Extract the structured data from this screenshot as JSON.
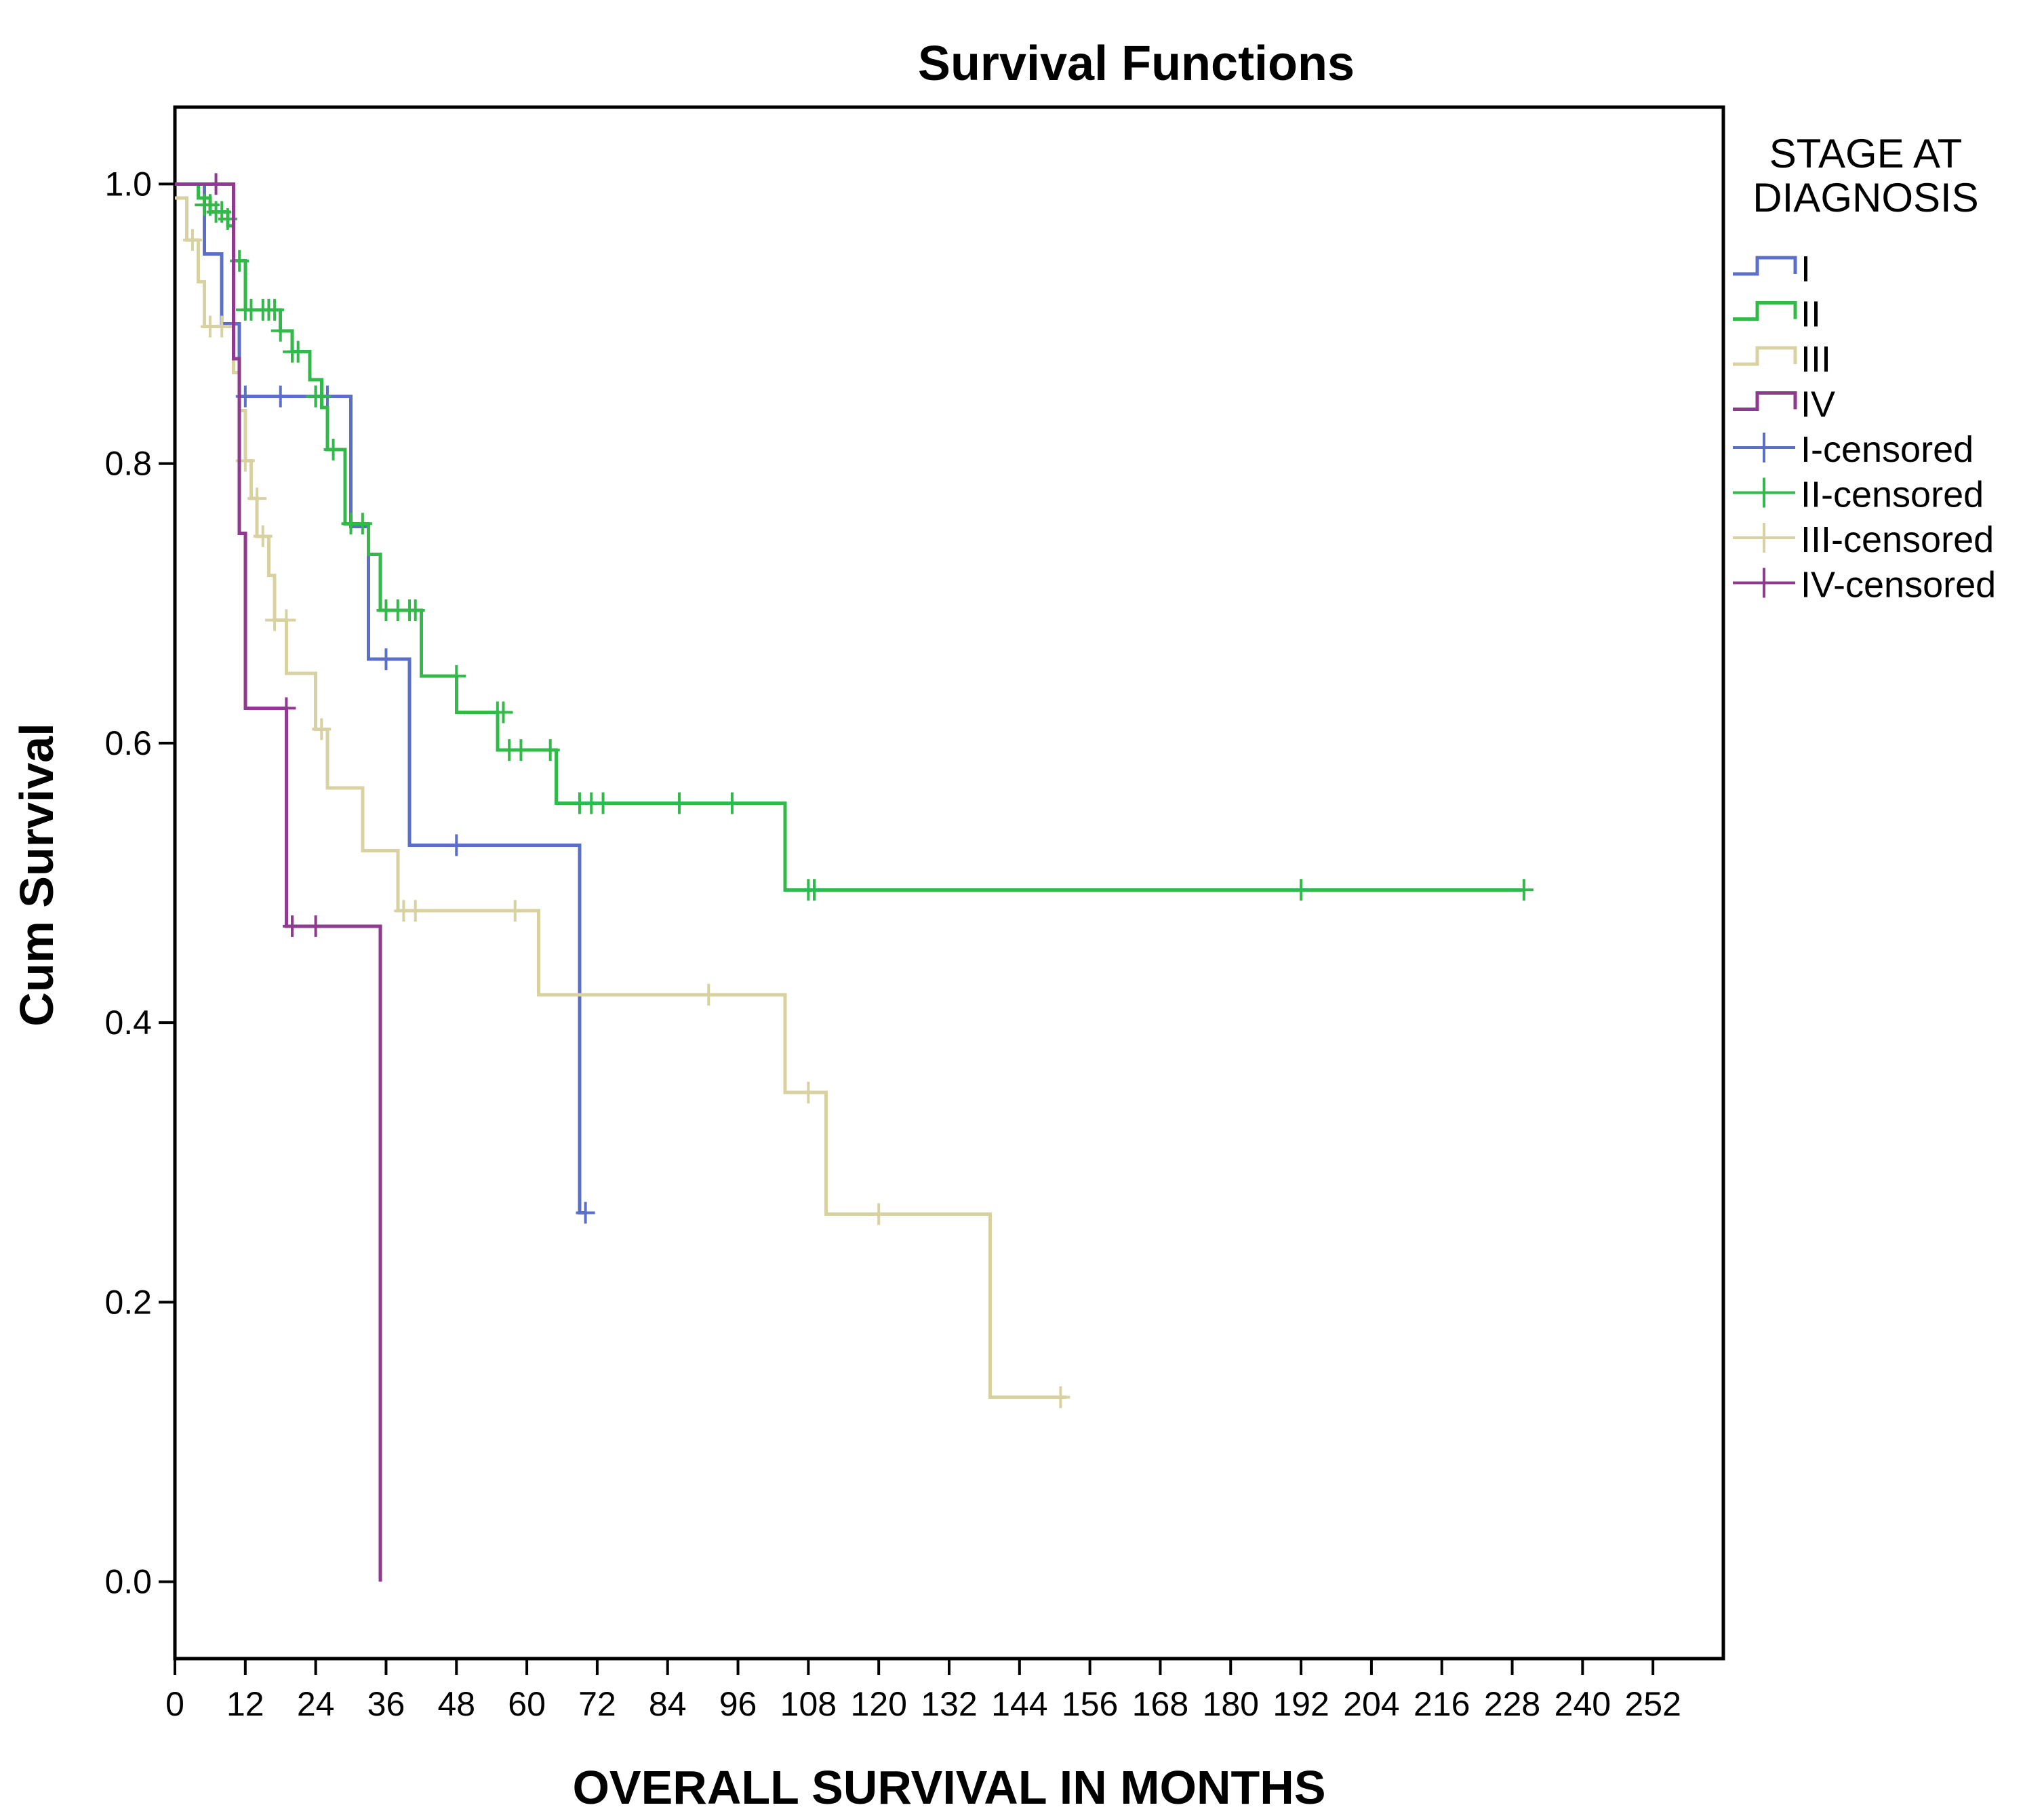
{
  "chart_data": {
    "type": "line",
    "title": "Survival Functions",
    "xlabel": "OVERALL SURVIVAL IN MONTHS",
    "ylabel": "Cum Survival",
    "xlim": [
      0,
      264
    ],
    "ylim": [
      -0.055,
      1.055
    ],
    "x_ticks": [
      0,
      12,
      24,
      36,
      48,
      60,
      72,
      84,
      96,
      108,
      120,
      132,
      144,
      156,
      168,
      180,
      192,
      204,
      216,
      228,
      240,
      252
    ],
    "y_ticks": [
      0.0,
      0.2,
      0.4,
      0.6,
      0.8,
      1.0
    ],
    "y_tick_labels": [
      "0.0",
      "0.2",
      "0.4",
      "0.6",
      "0.8",
      "1.0"
    ],
    "grid": false,
    "legend": {
      "title": "STAGE AT DIAGNOSIS",
      "title_lines": [
        "STAGE AT",
        "DIAGNOSIS"
      ],
      "placement": "right",
      "entries": [
        {
          "label": "I",
          "series": "I",
          "kind": "step"
        },
        {
          "label": "II",
          "series": "II",
          "kind": "step"
        },
        {
          "label": "III",
          "series": "III",
          "kind": "step"
        },
        {
          "label": "IV",
          "series": "IV",
          "kind": "step"
        },
        {
          "label": "I-censored",
          "series": "I",
          "kind": "censor"
        },
        {
          "label": "II-censored",
          "series": "II",
          "kind": "censor"
        },
        {
          "label": "III-censored",
          "series": "III",
          "kind": "censor"
        },
        {
          "label": "IV-censored",
          "series": "IV",
          "kind": "censor"
        }
      ]
    },
    "series": [
      {
        "name": "I",
        "color": "#5b6fc7",
        "steps": [
          [
            0,
            1.0
          ],
          [
            5,
            0.95
          ],
          [
            8,
            0.9
          ],
          [
            11,
            0.848
          ],
          [
            30,
            0.755
          ],
          [
            33,
            0.66
          ],
          [
            40,
            0.527
          ],
          [
            69,
            0.264
          ]
        ],
        "end": 70,
        "censored": [
          [
            12,
            0.848
          ],
          [
            18,
            0.848
          ],
          [
            24,
            0.848
          ],
          [
            26,
            0.848
          ],
          [
            36,
            0.66
          ],
          [
            48,
            0.527
          ],
          [
            70,
            0.264
          ]
        ]
      },
      {
        "name": "II",
        "color": "#33b84a",
        "steps": [
          [
            0,
            1.0
          ],
          [
            4,
            0.99
          ],
          [
            6,
            0.98
          ],
          [
            9,
            0.97
          ],
          [
            10,
            0.945
          ],
          [
            12,
            0.91
          ],
          [
            18,
            0.895
          ],
          [
            20,
            0.88
          ],
          [
            23,
            0.86
          ],
          [
            25,
            0.84
          ],
          [
            26,
            0.81
          ],
          [
            29,
            0.757
          ],
          [
            33,
            0.735
          ],
          [
            35,
            0.695
          ],
          [
            42,
            0.648
          ],
          [
            48,
            0.622
          ],
          [
            55,
            0.595
          ],
          [
            65,
            0.557
          ],
          [
            104,
            0.495
          ]
        ],
        "end": 230,
        "censored": [
          [
            5,
            0.985
          ],
          [
            6,
            0.985
          ],
          [
            7,
            0.98
          ],
          [
            8,
            0.98
          ],
          [
            9,
            0.975
          ],
          [
            11,
            0.945
          ],
          [
            12,
            0.91
          ],
          [
            13,
            0.91
          ],
          [
            15,
            0.91
          ],
          [
            16,
            0.91
          ],
          [
            17,
            0.91
          ],
          [
            18,
            0.895
          ],
          [
            20,
            0.88
          ],
          [
            21,
            0.88
          ],
          [
            24,
            0.848
          ],
          [
            25,
            0.848
          ],
          [
            27,
            0.81
          ],
          [
            30,
            0.757
          ],
          [
            32,
            0.757
          ],
          [
            36,
            0.695
          ],
          [
            38,
            0.695
          ],
          [
            40,
            0.695
          ],
          [
            41,
            0.695
          ],
          [
            48,
            0.648
          ],
          [
            55,
            0.622
          ],
          [
            56,
            0.622
          ],
          [
            57,
            0.595
          ],
          [
            59,
            0.595
          ],
          [
            64,
            0.595
          ],
          [
            69,
            0.557
          ],
          [
            71,
            0.557
          ],
          [
            73,
            0.557
          ],
          [
            86,
            0.557
          ],
          [
            95,
            0.557
          ],
          [
            108,
            0.495
          ],
          [
            109,
            0.495
          ],
          [
            192,
            0.495
          ],
          [
            230,
            0.495
          ]
        ]
      },
      {
        "name": "III",
        "color": "#d8d2a2",
        "steps": [
          [
            0,
            0.99
          ],
          [
            2,
            0.96
          ],
          [
            4,
            0.93
          ],
          [
            5,
            0.898
          ],
          [
            10,
            0.865
          ],
          [
            11,
            0.838
          ],
          [
            12,
            0.802
          ],
          [
            13,
            0.775
          ],
          [
            14,
            0.748
          ],
          [
            16,
            0.72
          ],
          [
            17,
            0.688
          ],
          [
            19,
            0.65
          ],
          [
            24,
            0.61
          ],
          [
            26,
            0.568
          ],
          [
            32,
            0.523
          ],
          [
            38,
            0.48
          ],
          [
            62,
            0.42
          ],
          [
            104,
            0.35
          ],
          [
            111,
            0.263
          ],
          [
            139,
            0.132
          ]
        ],
        "end": 152,
        "censored": [
          [
            3,
            0.96
          ],
          [
            6,
            0.898
          ],
          [
            8,
            0.898
          ],
          [
            12,
            0.802
          ],
          [
            14,
            0.775
          ],
          [
            15,
            0.748
          ],
          [
            17,
            0.688
          ],
          [
            19,
            0.688
          ],
          [
            25,
            0.61
          ],
          [
            39,
            0.48
          ],
          [
            41,
            0.48
          ],
          [
            58,
            0.48
          ],
          [
            91,
            0.42
          ],
          [
            108,
            0.35
          ],
          [
            120,
            0.263
          ],
          [
            151,
            0.132
          ]
        ]
      },
      {
        "name": "IV",
        "color": "#8e3a8e",
        "steps": [
          [
            0,
            1.0
          ],
          [
            10,
            0.875
          ],
          [
            11,
            0.75
          ],
          [
            12,
            0.625
          ],
          [
            19,
            0.469
          ],
          [
            35,
            0.0
          ]
        ],
        "end": 35,
        "censored": [
          [
            7,
            1.0
          ],
          [
            19,
            0.625
          ],
          [
            20,
            0.469
          ],
          [
            24,
            0.469
          ]
        ]
      }
    ]
  }
}
